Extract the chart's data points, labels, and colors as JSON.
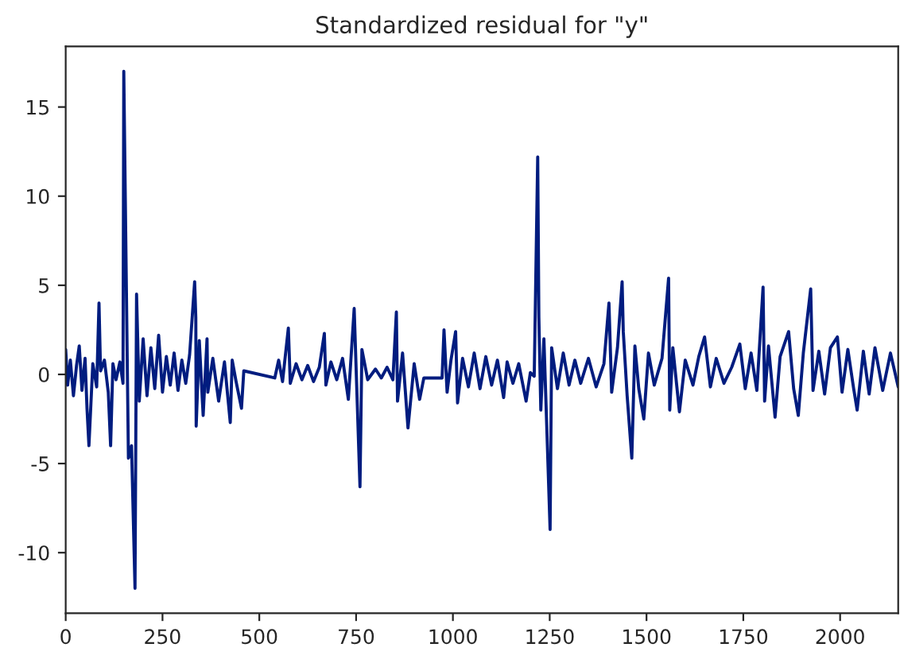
{
  "chart_data": {
    "type": "line",
    "title": "Standardized residual for \"y\"",
    "grid": false,
    "legend": false,
    "xlim": [
      0,
      2150
    ],
    "ylim": [
      -13.4,
      18.4
    ],
    "xticks": [
      0,
      250,
      500,
      750,
      1000,
      1250,
      1500,
      1750,
      2000
    ],
    "yticks": [
      -10,
      -5,
      0,
      5,
      10,
      15
    ],
    "series": [
      {
        "color": "#001c7f",
        "x": [
          0,
          5,
          12,
          20,
          28,
          35,
          42,
          50,
          55,
          60,
          70,
          80,
          86,
          90,
          100,
          110,
          116,
          122,
          130,
          140,
          148,
          150,
          157,
          162,
          170,
          179,
          183,
          190,
          200,
          210,
          220,
          230,
          240,
          250,
          260,
          270,
          280,
          290,
          300,
          310,
          320,
          333,
          336,
          337,
          345,
          355,
          365,
          367,
          380,
          395,
          410,
          425,
          430,
          440,
          454,
          460,
          540,
          550,
          560,
          575,
          580,
          595,
          610,
          625,
          640,
          655,
          668,
          672,
          685,
          700,
          715,
          730,
          745,
          760,
          765,
          780,
          800,
          815,
          830,
          845,
          854,
          857,
          870,
          884,
          900,
          914,
          925,
          972,
          977,
          985,
          995,
          1007,
          1012,
          1025,
          1040,
          1055,
          1070,
          1085,
          1100,
          1115,
          1131,
          1140,
          1155,
          1170,
          1189,
          1200,
          1210,
          1219,
          1222,
          1227,
          1235,
          1251,
          1255,
          1270,
          1285,
          1300,
          1315,
          1330,
          1350,
          1370,
          1390,
          1403,
          1410,
          1425,
          1437,
          1440,
          1450,
          1462,
          1470,
          1480,
          1493,
          1505,
          1520,
          1540,
          1557,
          1560,
          1568,
          1585,
          1600,
          1620,
          1635,
          1650,
          1665,
          1680,
          1700,
          1720,
          1741,
          1755,
          1770,
          1785,
          1801,
          1805,
          1815,
          1832,
          1845,
          1867,
          1880,
          1892,
          1905,
          1924,
          1930,
          1945,
          1960,
          1975,
          1993,
          2005,
          2020,
          2035,
          2044,
          2060,
          2075,
          2090,
          2110,
          2130,
          2150
        ],
        "values": [
          1.4,
          -0.6,
          0.8,
          -1.2,
          0.5,
          1.6,
          -0.9,
          0.9,
          -1.9,
          -4.0,
          0.6,
          -0.7,
          4.0,
          0.2,
          0.8,
          -1.0,
          -4.0,
          0.6,
          -0.3,
          0.7,
          -0.5,
          17.0,
          4.3,
          -4.7,
          -4.0,
          -12.0,
          4.5,
          -1.5,
          2.0,
          -1.2,
          1.5,
          -0.8,
          2.2,
          -1.0,
          1.0,
          -0.6,
          1.2,
          -0.9,
          0.8,
          -0.5,
          1.1,
          5.2,
          3.2,
          -2.9,
          1.9,
          -2.3,
          2.0,
          -1.0,
          0.9,
          -1.5,
          0.7,
          -2.7,
          0.8,
          -0.4,
          -1.9,
          0.2,
          -0.2,
          0.8,
          -0.4,
          2.6,
          -0.5,
          0.6,
          -0.3,
          0.5,
          -0.4,
          0.4,
          2.3,
          -0.6,
          0.7,
          -0.3,
          0.9,
          -1.4,
          3.7,
          -6.3,
          1.4,
          -0.3,
          0.3,
          -0.2,
          0.4,
          -0.3,
          3.5,
          -1.5,
          1.2,
          -3.0,
          0.6,
          -1.4,
          -0.2,
          -0.2,
          2.5,
          -1.0,
          0.8,
          2.4,
          -1.6,
          0.9,
          -0.7,
          1.2,
          -0.8,
          1.0,
          -0.6,
          0.8,
          -1.3,
          0.7,
          -0.5,
          0.6,
          -1.5,
          0.1,
          -0.1,
          12.2,
          3.2,
          -2.0,
          2.0,
          -8.7,
          1.5,
          -0.8,
          1.2,
          -0.6,
          0.8,
          -0.5,
          0.9,
          -0.7,
          0.6,
          4.0,
          -1.0,
          1.5,
          5.2,
          2.4,
          -1.2,
          -4.7,
          1.6,
          -0.8,
          -2.5,
          1.2,
          -0.6,
          0.9,
          5.4,
          -2.0,
          1.5,
          -2.1,
          0.8,
          -0.6,
          1.0,
          2.1,
          -0.7,
          0.9,
          -0.5,
          0.4,
          1.7,
          -0.8,
          1.2,
          -0.9,
          4.9,
          -1.5,
          1.6,
          -2.4,
          1.0,
          2.4,
          -0.8,
          -2.3,
          1.2,
          4.8,
          -0.9,
          1.3,
          -1.1,
          1.5,
          2.1,
          -1.0,
          1.4,
          -0.8,
          -2.0,
          1.3,
          -1.1,
          1.5,
          -0.9,
          1.2,
          -0.7
        ]
      }
    ]
  }
}
